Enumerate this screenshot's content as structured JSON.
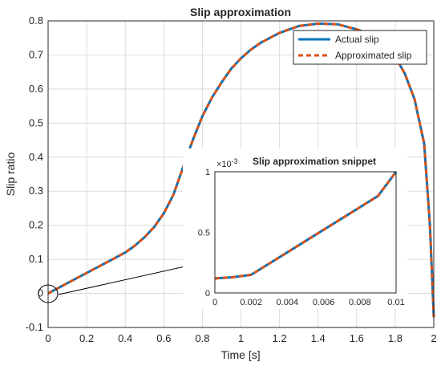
{
  "chart_data": [
    {
      "type": "line",
      "title": "Slip approximation",
      "xlabel": "Time [s]",
      "ylabel": "Slip ratio",
      "xlim": [
        0,
        2
      ],
      "ylim": [
        -0.1,
        0.8
      ],
      "xticks": [
        "0",
        "0.2",
        "0.4",
        "0.6",
        "0.8",
        "1",
        "1.2",
        "1.4",
        "1.6",
        "1.8",
        "2"
      ],
      "yticks": [
        "-0.1",
        "0",
        "0.1",
        "0.2",
        "0.3",
        "0.4",
        "0.5",
        "0.6",
        "0.7",
        "0.8"
      ],
      "grid": true,
      "legend_position": "top-right",
      "series": [
        {
          "name": "Actual slip",
          "color": "#0072BD",
          "style": "solid",
          "x": [
            0,
            0.05,
            0.1,
            0.2,
            0.3,
            0.4,
            0.45,
            0.5,
            0.55,
            0.6,
            0.65,
            0.7,
            0.75,
            0.8,
            0.85,
            0.9,
            0.95,
            1.0,
            1.05,
            1.1,
            1.2,
            1.3,
            1.4,
            1.5,
            1.6,
            1.7,
            1.75,
            1.8,
            1.85,
            1.9,
            1.95,
            1.98,
            2.0
          ],
          "y": [
            0,
            0.015,
            0.03,
            0.06,
            0.09,
            0.12,
            0.14,
            0.165,
            0.195,
            0.235,
            0.29,
            0.37,
            0.45,
            0.52,
            0.575,
            0.62,
            0.66,
            0.69,
            0.715,
            0.735,
            0.765,
            0.785,
            0.792,
            0.79,
            0.775,
            0.755,
            0.735,
            0.695,
            0.645,
            0.57,
            0.44,
            0.2,
            -0.07
          ]
        },
        {
          "name": "Approximated slip",
          "color": "#D95319",
          "style": "dashed",
          "x": [
            0,
            0.05,
            0.1,
            0.2,
            0.3,
            0.4,
            0.45,
            0.5,
            0.55,
            0.6,
            0.65,
            0.7,
            0.75,
            0.8,
            0.85,
            0.9,
            0.95,
            1.0,
            1.05,
            1.1,
            1.2,
            1.3,
            1.4,
            1.5,
            1.6,
            1.7,
            1.75,
            1.8,
            1.85,
            1.9,
            1.95,
            1.98,
            2.0
          ],
          "y": [
            0,
            0.015,
            0.03,
            0.06,
            0.09,
            0.12,
            0.14,
            0.165,
            0.195,
            0.235,
            0.29,
            0.37,
            0.45,
            0.52,
            0.575,
            0.62,
            0.66,
            0.69,
            0.715,
            0.735,
            0.765,
            0.785,
            0.792,
            0.79,
            0.775,
            0.755,
            0.735,
            0.695,
            0.645,
            0.57,
            0.44,
            0.2,
            -0.07
          ]
        }
      ],
      "annotations": [
        "circle at origin with arrow pointing to inset"
      ]
    },
    {
      "type": "line",
      "title": "Slip approximation snippet",
      "xlim": [
        0,
        0.01
      ],
      "ylim": [
        0,
        0.001
      ],
      "y_exponent_label": "×10",
      "y_exponent_power": "-3",
      "xticks": [
        "0",
        "0.002",
        "0.004",
        "0.006",
        "0.008",
        "0.01"
      ],
      "yticks": [
        "0",
        "0.5",
        "1"
      ],
      "grid": false,
      "series": [
        {
          "name": "Actual slip",
          "color": "#0072BD",
          "style": "solid",
          "x": [
            0,
            0.001,
            0.002,
            0.009,
            0.01
          ],
          "y": [
            0.00012,
            0.00013,
            0.00015,
            0.0008,
            0.001
          ]
        },
        {
          "name": "Approximated slip",
          "color": "#D95319",
          "style": "dashed",
          "x": [
            0,
            0.001,
            0.002,
            0.009,
            0.01
          ],
          "y": [
            0.00012,
            0.00013,
            0.00015,
            0.0008,
            0.001
          ]
        }
      ]
    }
  ]
}
